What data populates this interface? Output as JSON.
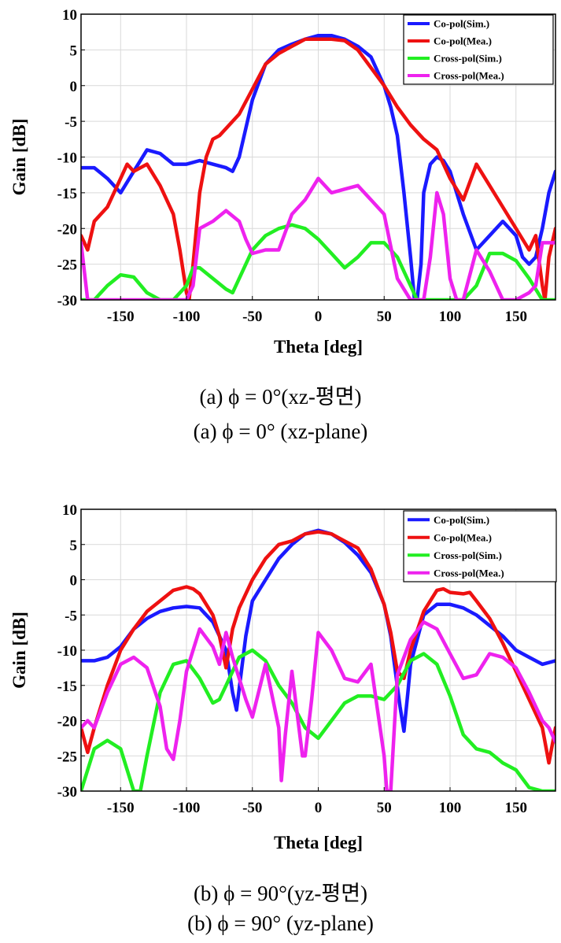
{
  "figure": {
    "captions": [
      {
        "ko": "(a)  ϕ = 0°(xz-평면)",
        "en": "(a)  ϕ = 0°  (xz-plane)"
      },
      {
        "ko": "(b)  ϕ = 90°(yz-평면)",
        "en": "(b)  ϕ = 90°  (yz-plane)"
      }
    ]
  },
  "chart_data": [
    {
      "type": "line",
      "xlabel": "Theta [deg]",
      "ylabel": "Gain [dB]",
      "xlim": [
        -180,
        180
      ],
      "ylim": [
        -30,
        10
      ],
      "xticks": [
        -150,
        -100,
        -50,
        0,
        50,
        100,
        150
      ],
      "yticks": [
        10,
        5,
        0,
        -5,
        -10,
        -15,
        -20,
        -25,
        -30
      ],
      "grid": true,
      "legend": "top-right",
      "series": [
        {
          "name": "Co-pol(Sim.)",
          "color": "#1a1aff",
          "x": [
            -180,
            -170,
            -160,
            -150,
            -140,
            -130,
            -120,
            -110,
            -100,
            -90,
            -80,
            -70,
            -65,
            -60,
            -50,
            -40,
            -30,
            -20,
            -10,
            0,
            10,
            20,
            30,
            40,
            50,
            55,
            60,
            65,
            70,
            73,
            75,
            78,
            80,
            85,
            90,
            95,
            100,
            105,
            110,
            120,
            130,
            140,
            150,
            155,
            160,
            165,
            170,
            175,
            180
          ],
          "y": [
            -11.5,
            -11.5,
            -13,
            -15,
            -12,
            -9,
            -9.5,
            -11,
            -11,
            -10.5,
            -11,
            -11.5,
            -12,
            -10,
            -2,
            3,
            5,
            5.8,
            6.5,
            7,
            7,
            6.5,
            5.5,
            4,
            0,
            -3,
            -7,
            -15,
            -24,
            -30,
            -30,
            -25,
            -15,
            -11,
            -10,
            -10.5,
            -12,
            -15,
            -18,
            -23,
            -21,
            -19,
            -21,
            -24,
            -25,
            -24,
            -20,
            -15,
            -12
          ]
        },
        {
          "name": "Co-pol(Mea.)",
          "color": "#ee1111",
          "x": [
            -180,
            -175,
            -170,
            -160,
            -150,
            -145,
            -140,
            -130,
            -120,
            -110,
            -105,
            -100,
            -98,
            -95,
            -90,
            -85,
            -80,
            -75,
            -70,
            -60,
            -50,
            -40,
            -30,
            -20,
            -10,
            0,
            10,
            20,
            30,
            40,
            50,
            60,
            70,
            80,
            90,
            100,
            110,
            120,
            130,
            140,
            150,
            160,
            165,
            170,
            172,
            175,
            180
          ],
          "y": [
            -21,
            -23,
            -19,
            -17,
            -13,
            -11,
            -12,
            -11,
            -14,
            -18,
            -23,
            -29,
            -30,
            -25,
            -15,
            -10,
            -7.5,
            -7,
            -6,
            -4,
            -0.5,
            3,
            4.5,
            5.5,
            6.5,
            6.5,
            6.5,
            6.3,
            5,
            2.5,
            0,
            -3,
            -5.5,
            -7.5,
            -9,
            -13,
            -16,
            -11,
            -14,
            -17,
            -20,
            -23,
            -21,
            -28,
            -30,
            -24,
            -20
          ]
        },
        {
          "name": "Cross-pol(Sim.)",
          "color": "#22ee22",
          "x": [
            -180,
            -170,
            -160,
            -150,
            -140,
            -130,
            -120,
            -110,
            -100,
            -95,
            -90,
            -80,
            -70,
            -65,
            -60,
            -50,
            -40,
            -30,
            -20,
            -10,
            0,
            10,
            20,
            30,
            40,
            50,
            60,
            70,
            75,
            80,
            85,
            90,
            100,
            110,
            120,
            130,
            140,
            150,
            160,
            170,
            180
          ],
          "y": [
            -30,
            -30,
            -28,
            -26.5,
            -26.8,
            -29,
            -30,
            -30,
            -28,
            -25.5,
            -25.5,
            -27,
            -28.5,
            -29,
            -27,
            -23,
            -21,
            -20,
            -19.5,
            -20,
            -21.5,
            -23.5,
            -25.5,
            -24,
            -22,
            -22,
            -24,
            -28,
            -30,
            -30,
            -30,
            -30,
            -30,
            -30,
            -28,
            -23.5,
            -23.5,
            -24.5,
            -27,
            -30,
            -30
          ]
        },
        {
          "name": "Cross-pol(Mea.)",
          "color": "#ee22ee",
          "x": [
            -180,
            -175,
            -170,
            -165,
            -160,
            -150,
            -145,
            -140,
            -130,
            -120,
            -110,
            -100,
            -95,
            -90,
            -80,
            -70,
            -60,
            -55,
            -50,
            -40,
            -30,
            -20,
            -10,
            0,
            10,
            20,
            30,
            40,
            50,
            60,
            70,
            80,
            85,
            90,
            95,
            100,
            105,
            110,
            120,
            130,
            140,
            150,
            160,
            165,
            170,
            175,
            180
          ],
          "y": [
            -22,
            -30,
            -30,
            -30,
            -30,
            -30,
            -30,
            -30,
            -30,
            -30,
            -30,
            -30,
            -28,
            -20,
            -19,
            -17.5,
            -19,
            -21.5,
            -23.5,
            -23,
            -23,
            -18,
            -16,
            -13,
            -15,
            -14.5,
            -14,
            -16,
            -18,
            -27,
            -30,
            -30,
            -24,
            -15,
            -18,
            -27,
            -30,
            -30,
            -23,
            -26,
            -30,
            -30,
            -29,
            -28,
            -22,
            -22,
            -22
          ]
        }
      ]
    },
    {
      "type": "line",
      "xlabel": "Theta [deg]",
      "ylabel": "Gain [dB]",
      "xlim": [
        -180,
        180
      ],
      "ylim": [
        -30,
        10
      ],
      "xticks": [
        -150,
        -100,
        -50,
        0,
        50,
        100,
        150
      ],
      "yticks": [
        10,
        5,
        0,
        -5,
        -10,
        -15,
        -20,
        -25,
        -30
      ],
      "grid": true,
      "legend": "top-right",
      "series": [
        {
          "name": "Co-pol(Sim.)",
          "color": "#1a1aff",
          "x": [
            -180,
            -170,
            -160,
            -150,
            -140,
            -130,
            -120,
            -110,
            -100,
            -90,
            -80,
            -70,
            -65,
            -62,
            -55,
            -50,
            -40,
            -30,
            -20,
            -10,
            0,
            10,
            20,
            30,
            40,
            50,
            55,
            62,
            65,
            68,
            70,
            80,
            90,
            100,
            110,
            120,
            130,
            140,
            150,
            160,
            170,
            180
          ],
          "y": [
            -11.5,
            -11.5,
            -11,
            -9.5,
            -7,
            -5.5,
            -4.5,
            -4,
            -3.8,
            -4,
            -6,
            -10,
            -16,
            -18.5,
            -8,
            -3,
            0,
            3,
            5,
            6.5,
            7,
            6.5,
            5.3,
            3.5,
            1,
            -3.5,
            -8,
            -18,
            -21.5,
            -16,
            -12,
            -5,
            -3.5,
            -3.5,
            -4,
            -5,
            -6.5,
            -8,
            -10,
            -11,
            -12,
            -11.5
          ]
        },
        {
          "name": "Co-pol(Mea.)",
          "color": "#ee1111",
          "x": [
            -180,
            -175,
            -170,
            -160,
            -150,
            -140,
            -130,
            -120,
            -110,
            -100,
            -95,
            -90,
            -80,
            -75,
            -70,
            -65,
            -60,
            -50,
            -40,
            -30,
            -20,
            -10,
            0,
            10,
            20,
            30,
            40,
            50,
            55,
            60,
            65,
            70,
            80,
            90,
            95,
            100,
            110,
            115,
            120,
            130,
            140,
            150,
            160,
            170,
            175,
            180
          ],
          "y": [
            -21,
            -24.5,
            -21,
            -15,
            -10,
            -7,
            -4.5,
            -3,
            -1.5,
            -1,
            -1.3,
            -2,
            -5,
            -8,
            -12.5,
            -7,
            -4,
            0,
            3,
            5,
            5.5,
            6.5,
            6.8,
            6.5,
            5.5,
            4.5,
            1.5,
            -3.5,
            -7.5,
            -13,
            -14,
            -10,
            -4.5,
            -1.5,
            -1.3,
            -1.8,
            -2,
            -1.8,
            -3,
            -5.5,
            -9,
            -13,
            -17,
            -21,
            -26,
            -21
          ]
        },
        {
          "name": "Cross-pol(Sim.)",
          "color": "#22ee22",
          "x": [
            -180,
            -170,
            -160,
            -150,
            -145,
            -140,
            -135,
            -130,
            -120,
            -110,
            -100,
            -90,
            -80,
            -75,
            -70,
            -60,
            -50,
            -40,
            -30,
            -20,
            -10,
            0,
            10,
            20,
            30,
            40,
            50,
            60,
            70,
            80,
            90,
            100,
            110,
            120,
            130,
            140,
            150,
            160,
            170,
            180
          ],
          "y": [
            -30,
            -24,
            -22.8,
            -24,
            -27,
            -30,
            -30,
            -25,
            -16,
            -12,
            -11.5,
            -14,
            -17.5,
            -17,
            -15,
            -11,
            -10,
            -11.5,
            -15,
            -17.5,
            -21,
            -22.5,
            -20,
            -17.5,
            -16.5,
            -16.5,
            -17,
            -15,
            -11.5,
            -10.5,
            -12,
            -16.5,
            -22,
            -24,
            -24.5,
            -26,
            -27,
            -29.5,
            -30,
            -30
          ]
        },
        {
          "name": "Cross-pol(Mea.)",
          "color": "#ee22ee",
          "x": [
            -180,
            -175,
            -170,
            -160,
            -150,
            -140,
            -130,
            -120,
            -115,
            -110,
            -105,
            -100,
            -90,
            -80,
            -75,
            -70,
            -65,
            -60,
            -55,
            -50,
            -40,
            -30,
            -28,
            -25,
            -20,
            -12,
            -10,
            -5,
            0,
            10,
            20,
            30,
            40,
            50,
            52,
            55,
            60,
            70,
            80,
            90,
            100,
            110,
            120,
            130,
            140,
            150,
            160,
            170,
            175,
            180
          ],
          "y": [
            -21,
            -20,
            -21,
            -16,
            -12,
            -11,
            -12.5,
            -18,
            -24,
            -25.5,
            -20,
            -13,
            -7,
            -9.5,
            -12,
            -7.5,
            -11,
            -14,
            -17,
            -19.5,
            -12,
            -21,
            -28.5,
            -22,
            -13,
            -25,
            -25,
            -17,
            -7.5,
            -10,
            -14,
            -14.5,
            -12,
            -25,
            -30,
            -30,
            -13.5,
            -8.5,
            -6,
            -7,
            -10.5,
            -14,
            -13.5,
            -10.5,
            -11,
            -12.5,
            -16,
            -20,
            -21,
            -23
          ]
        }
      ]
    }
  ]
}
